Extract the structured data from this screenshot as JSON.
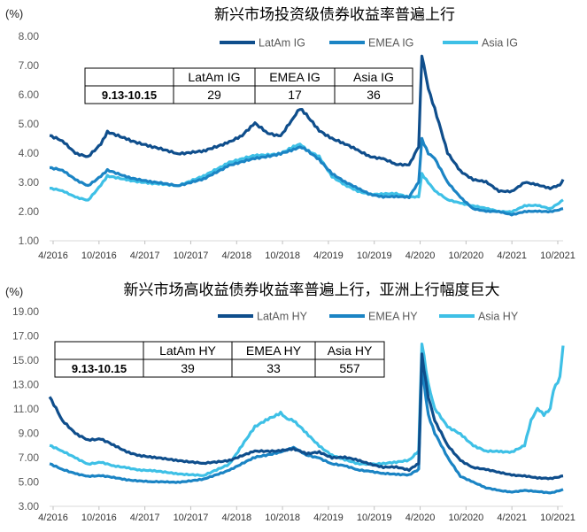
{
  "colors": {
    "latam": "#0f4e8c",
    "emea": "#1b84c4",
    "asia": "#3ec0e6"
  },
  "chart_data": [
    {
      "type": "line",
      "title": "新兴市场投资级债券收益率普遍上行",
      "unit": "(%)",
      "ylim": [
        1.0,
        8.0
      ],
      "yticks": [
        "8.00",
        "7.00",
        "6.00",
        "5.00",
        "4.00",
        "3.00",
        "2.00",
        "1.00"
      ],
      "xticks": [
        "4/2016",
        "10/2016",
        "4/2017",
        "10/2017",
        "4/2018",
        "10/2018",
        "4/2019",
        "10/2019",
        "4/2020",
        "10/2020",
        "4/2021",
        "10/2021"
      ],
      "legend_position": "top-right",
      "series": [
        {
          "name": "LatAm IG",
          "key": "latam",
          "points": [
            [
              0,
              4.6
            ],
            [
              2,
              4.4
            ],
            [
              4,
              4.0
            ],
            [
              6,
              3.9
            ],
            [
              8,
              4.3
            ],
            [
              9,
              4.7
            ],
            [
              12,
              4.5
            ],
            [
              16,
              4.2
            ],
            [
              20,
              4.0
            ],
            [
              24,
              4.05
            ],
            [
              28,
              4.4
            ],
            [
              30,
              4.6
            ],
            [
              32,
              5.0
            ],
            [
              34,
              4.7
            ],
            [
              36,
              4.6
            ],
            [
              38,
              5.2
            ],
            [
              39,
              5.5
            ],
            [
              40,
              5.3
            ],
            [
              42,
              4.8
            ],
            [
              44,
              4.5
            ],
            [
              46,
              4.3
            ],
            [
              48,
              4.1
            ],
            [
              50,
              3.9
            ],
            [
              52,
              3.8
            ],
            [
              54,
              3.6
            ],
            [
              56,
              3.6
            ],
            [
              57.5,
              4.2
            ],
            [
              58,
              7.4
            ],
            [
              59,
              6.2
            ],
            [
              60,
              5.5
            ],
            [
              62,
              4.0
            ],
            [
              64,
              3.4
            ],
            [
              66,
              3.1
            ],
            [
              68,
              3.0
            ],
            [
              70,
              2.7
            ],
            [
              72,
              2.7
            ],
            [
              74,
              3.0
            ],
            [
              76,
              2.9
            ],
            [
              78,
              2.8
            ],
            [
              79.5,
              2.9
            ],
            [
              80,
              3.1
            ]
          ]
        },
        {
          "name": "EMEA IG",
          "key": "emea",
          "points": [
            [
              0,
              3.5
            ],
            [
              2,
              3.4
            ],
            [
              4,
              3.1
            ],
            [
              6,
              2.9
            ],
            [
              8,
              3.2
            ],
            [
              9,
              3.4
            ],
            [
              12,
              3.2
            ],
            [
              16,
              3.0
            ],
            [
              20,
              2.9
            ],
            [
              24,
              3.1
            ],
            [
              28,
              3.6
            ],
            [
              32,
              3.8
            ],
            [
              36,
              4.0
            ],
            [
              38,
              4.1
            ],
            [
              39,
              4.2
            ],
            [
              40,
              4.1
            ],
            [
              42,
              3.8
            ],
            [
              44,
              3.3
            ],
            [
              46,
              3.0
            ],
            [
              48,
              2.8
            ],
            [
              50,
              2.6
            ],
            [
              52,
              2.5
            ],
            [
              54,
              2.5
            ],
            [
              56,
              2.5
            ],
            [
              57.5,
              3.0
            ],
            [
              58,
              4.5
            ],
            [
              59,
              4.0
            ],
            [
              60,
              3.8
            ],
            [
              62,
              3.0
            ],
            [
              64,
              2.5
            ],
            [
              66,
              2.1
            ],
            [
              68,
              2.0
            ],
            [
              70,
              2.0
            ],
            [
              72,
              1.9
            ],
            [
              74,
              2.0
            ],
            [
              76,
              2.0
            ],
            [
              78,
              2.0
            ],
            [
              80,
              2.1
            ]
          ]
        },
        {
          "name": "Asia IG",
          "key": "asia",
          "points": [
            [
              0,
              2.8
            ],
            [
              2,
              2.7
            ],
            [
              4,
              2.5
            ],
            [
              6,
              2.4
            ],
            [
              8,
              2.9
            ],
            [
              9,
              3.2
            ],
            [
              12,
              3.1
            ],
            [
              16,
              2.95
            ],
            [
              20,
              2.9
            ],
            [
              24,
              3.2
            ],
            [
              28,
              3.7
            ],
            [
              32,
              3.9
            ],
            [
              36,
              4.0
            ],
            [
              38,
              4.2
            ],
            [
              39,
              4.3
            ],
            [
              40,
              4.1
            ],
            [
              42,
              3.9
            ],
            [
              44,
              3.2
            ],
            [
              46,
              2.9
            ],
            [
              48,
              2.7
            ],
            [
              50,
              2.6
            ],
            [
              52,
              2.6
            ],
            [
              54,
              2.6
            ],
            [
              56,
              2.5
            ],
            [
              57.5,
              2.5
            ],
            [
              58,
              3.3
            ],
            [
              59,
              3.0
            ],
            [
              60,
              2.7
            ],
            [
              62,
              2.4
            ],
            [
              64,
              2.3
            ],
            [
              66,
              2.2
            ],
            [
              68,
              2.1
            ],
            [
              70,
              2.0
            ],
            [
              72,
              2.0
            ],
            [
              74,
              2.2
            ],
            [
              76,
              2.2
            ],
            [
              78,
              2.1
            ],
            [
              80,
              2.4
            ]
          ]
        }
      ],
      "table": {
        "row_label": "9.13-10.15",
        "headers": [
          "LatAm IG",
          "EMEA IG",
          "Asia IG"
        ],
        "values": [
          "29",
          "17",
          "36"
        ]
      }
    },
    {
      "type": "line",
      "title": "新兴市场高收益债券收益率普遍上行，亚洲上行幅度巨大",
      "unit": "(%)",
      "ylim": [
        3.0,
        19.0
      ],
      "yticks": [
        "19.00",
        "17.00",
        "15.00",
        "13.00",
        "11.00",
        "9.00",
        "7.00",
        "5.00",
        "3.00"
      ],
      "xticks": [
        "4/2016",
        "10/2016",
        "4/2017",
        "10/2017",
        "4/2018",
        "10/2018",
        "4/2019",
        "10/2019",
        "4/2020",
        "10/2020",
        "4/2021",
        "10/2021"
      ],
      "legend_position": "top-right",
      "series": [
        {
          "name": "LatAm HY",
          "key": "latam",
          "points": [
            [
              0,
              12.0
            ],
            [
              2,
              10.0
            ],
            [
              4,
              9.0
            ],
            [
              6,
              8.5
            ],
            [
              8,
              8.5
            ],
            [
              10,
              8.0
            ],
            [
              12,
              7.5
            ],
            [
              14,
              7.2
            ],
            [
              16,
              7.0
            ],
            [
              20,
              6.8
            ],
            [
              24,
              6.5
            ],
            [
              28,
              6.8
            ],
            [
              32,
              7.5
            ],
            [
              36,
              7.6
            ],
            [
              38,
              7.7
            ],
            [
              40,
              7.3
            ],
            [
              42,
              7.5
            ],
            [
              44,
              7.0
            ],
            [
              46,
              7.0
            ],
            [
              48,
              6.8
            ],
            [
              50,
              6.5
            ],
            [
              52,
              6.2
            ],
            [
              54,
              6.2
            ],
            [
              56,
              6.0
            ],
            [
              57.5,
              6.5
            ],
            [
              58,
              15.5
            ],
            [
              59,
              12.0
            ],
            [
              60,
              10.0
            ],
            [
              62,
              8.0
            ],
            [
              64,
              6.8
            ],
            [
              66,
              6.2
            ],
            [
              68,
              6.0
            ],
            [
              70,
              5.8
            ],
            [
              72,
              5.6
            ],
            [
              74,
              5.5
            ],
            [
              76,
              5.3
            ],
            [
              78,
              5.3
            ],
            [
              80,
              5.5
            ]
          ]
        },
        {
          "name": "EMEA HY",
          "key": "emea",
          "points": [
            [
              0,
              6.5
            ],
            [
              2,
              6.0
            ],
            [
              4,
              5.7
            ],
            [
              6,
              5.5
            ],
            [
              8,
              5.5
            ],
            [
              12,
              5.2
            ],
            [
              16,
              5.0
            ],
            [
              20,
              5.0
            ],
            [
              24,
              5.2
            ],
            [
              28,
              6.0
            ],
            [
              32,
              7.0
            ],
            [
              36,
              7.5
            ],
            [
              38,
              7.8
            ],
            [
              40,
              7.2
            ],
            [
              42,
              7.0
            ],
            [
              44,
              6.5
            ],
            [
              46,
              6.3
            ],
            [
              48,
              6.0
            ],
            [
              50,
              5.9
            ],
            [
              52,
              5.7
            ],
            [
              54,
              5.6
            ],
            [
              56,
              5.6
            ],
            [
              57.5,
              6.0
            ],
            [
              58,
              14.5
            ],
            [
              59,
              10.5
            ],
            [
              60,
              9.0
            ],
            [
              62,
              7.0
            ],
            [
              64,
              5.5
            ],
            [
              66,
              5.0
            ],
            [
              68,
              4.5
            ],
            [
              70,
              4.3
            ],
            [
              72,
              4.2
            ],
            [
              74,
              4.3
            ],
            [
              76,
              4.2
            ],
            [
              78,
              4.1
            ],
            [
              80,
              4.4
            ]
          ]
        },
        {
          "name": "Asia HY",
          "key": "asia",
          "points": [
            [
              0,
              8.0
            ],
            [
              2,
              7.5
            ],
            [
              4,
              7.0
            ],
            [
              6,
              6.5
            ],
            [
              8,
              6.6
            ],
            [
              10,
              6.3
            ],
            [
              12,
              6.2
            ],
            [
              14,
              6.0
            ],
            [
              16,
              5.9
            ],
            [
              20,
              5.7
            ],
            [
              24,
              5.5
            ],
            [
              28,
              6.5
            ],
            [
              30,
              8.0
            ],
            [
              32,
              9.5
            ],
            [
              34,
              10.2
            ],
            [
              36,
              10.7
            ],
            [
              37,
              10.2
            ],
            [
              38,
              10.0
            ],
            [
              40,
              9.0
            ],
            [
              42,
              8.0
            ],
            [
              44,
              7.2
            ],
            [
              46,
              6.8
            ],
            [
              48,
              6.5
            ],
            [
              50,
              6.5
            ],
            [
              52,
              6.5
            ],
            [
              54,
              6.6
            ],
            [
              56,
              6.8
            ],
            [
              57.5,
              7.5
            ],
            [
              58,
              16.5
            ],
            [
              59,
              13.0
            ],
            [
              60,
              11.0
            ],
            [
              62,
              9.5
            ],
            [
              64,
              9.0
            ],
            [
              66,
              8.0
            ],
            [
              68,
              7.5
            ],
            [
              70,
              7.5
            ],
            [
              72,
              7.5
            ],
            [
              74,
              8.0
            ],
            [
              75,
              10.0
            ],
            [
              76,
              11.0
            ],
            [
              77,
              10.5
            ],
            [
              78,
              11.0
            ],
            [
              78.5,
              12.5
            ],
            [
              79.5,
              13.5
            ],
            [
              80,
              16.2
            ]
          ]
        }
      ],
      "table": {
        "row_label": "9.13-10.15",
        "headers": [
          "LatAm HY",
          "EMEA HY",
          "Asia HY"
        ],
        "values": [
          "39",
          "33",
          "557"
        ]
      }
    }
  ]
}
